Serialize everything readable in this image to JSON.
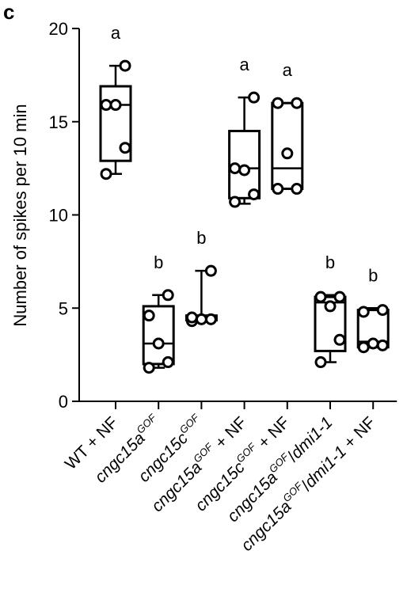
{
  "panel_label": "c",
  "chart_data": {
    "type": "box",
    "ylabel": "Number of spikes per 10 min",
    "xlabel": "",
    "ylim": [
      0,
      20
    ],
    "yticks": [
      0,
      5,
      10,
      15,
      20
    ],
    "grid": false,
    "legend": "none",
    "categories": [
      {
        "parts": [
          {
            "t": "WT + NF",
            "s": "n"
          }
        ]
      },
      {
        "parts": [
          {
            "t": "cngc15a",
            "s": "i"
          },
          {
            "t": "GOF",
            "s": "sup"
          }
        ]
      },
      {
        "parts": [
          {
            "t": "cngc15c",
            "s": "i"
          },
          {
            "t": "GOF",
            "s": "sup"
          }
        ]
      },
      {
        "parts": [
          {
            "t": "cngc15a",
            "s": "i"
          },
          {
            "t": "GOF",
            "s": "sup"
          },
          {
            "t": " + NF",
            "s": "n"
          }
        ]
      },
      {
        "parts": [
          {
            "t": "cngc15c",
            "s": "i"
          },
          {
            "t": "GOF",
            "s": "sup"
          },
          {
            "t": " + NF",
            "s": "n"
          }
        ]
      },
      {
        "parts": [
          {
            "t": "cngc15a",
            "s": "i"
          },
          {
            "t": "GOF",
            "s": "sup"
          },
          {
            "t": "/",
            "s": "n"
          },
          {
            "t": "dmi1-1",
            "s": "i"
          }
        ]
      },
      {
        "parts": [
          {
            "t": "cngc15a",
            "s": "i"
          },
          {
            "t": "GOF",
            "s": "sup"
          },
          {
            "t": "/",
            "s": "n"
          },
          {
            "t": "dmi1-1",
            "s": "i"
          },
          {
            "t": " + NF",
            "s": "n"
          }
        ]
      }
    ],
    "series": [
      {
        "box": {
          "min": 12.2,
          "q1": 12.9,
          "median": 15.9,
          "q3": 16.9,
          "max": 18.0
        },
        "points": [
          12.2,
          13.6,
          15.9,
          15.9,
          18.0
        ],
        "significance": "a"
      },
      {
        "box": {
          "min": 1.8,
          "q1": 2.0,
          "median": 3.1,
          "q3": 5.1,
          "max": 5.7
        },
        "points": [
          1.8,
          2.1,
          3.1,
          4.6,
          5.7
        ],
        "significance": "b"
      },
      {
        "box": {
          "min": 4.3,
          "q1": 4.35,
          "median": 4.5,
          "q3": 4.6,
          "max": 7.0
        },
        "points": [
          4.3,
          4.4,
          4.4,
          4.5,
          7.0
        ],
        "significance": "b"
      },
      {
        "box": {
          "min": 10.6,
          "q1": 10.9,
          "median": 12.5,
          "q3": 14.5,
          "max": 16.3
        },
        "points": [
          10.7,
          11.1,
          12.4,
          12.5,
          16.3
        ],
        "significance": "a"
      },
      {
        "box": {
          "min": 11.4,
          "q1": 11.4,
          "median": 12.5,
          "q3": 16.0,
          "max": 16.0
        },
        "points": [
          11.4,
          11.4,
          13.3,
          16.0,
          16.0
        ],
        "significance": "a"
      },
      {
        "box": {
          "min": 2.1,
          "q1": 2.7,
          "median": 5.3,
          "q3": 5.6,
          "max": 5.7
        },
        "points": [
          2.1,
          3.3,
          5.1,
          5.6,
          5.6
        ],
        "significance": "b"
      },
      {
        "box": {
          "min": 2.9,
          "q1": 2.9,
          "median": 3.2,
          "q3": 4.9,
          "max": 5.0
        },
        "points": [
          2.9,
          3.0,
          3.1,
          4.8,
          4.9
        ],
        "significance": "b"
      }
    ],
    "colors": {
      "stroke": "#000000",
      "point_fill": "#ffffff"
    }
  }
}
